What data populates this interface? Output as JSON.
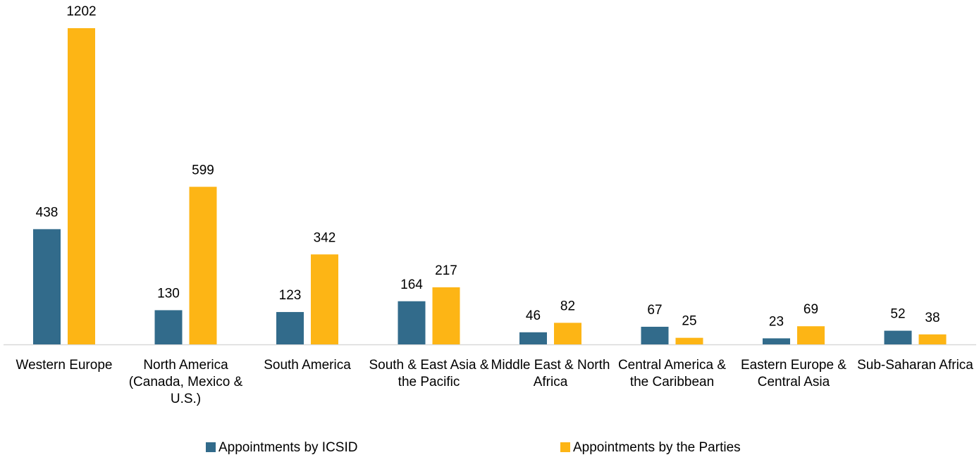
{
  "chart_data": {
    "type": "bar",
    "categories": [
      "Western Europe",
      "North America (Canada, Mexico & U.S.)",
      "South America",
      "South & East Asia & the Pacific",
      "Middle East & North Africa",
      "Central America & the Caribbean",
      "Eastern Europe & Central Asia",
      "Sub-Saharan Africa"
    ],
    "series": [
      {
        "name": "Appointments by ICSID",
        "color": "#326b8b",
        "values": [
          438,
          130,
          123,
          164,
          46,
          67,
          23,
          52
        ]
      },
      {
        "name": "Appointments by the Parties",
        "color": "#fdb515",
        "values": [
          1202,
          599,
          342,
          217,
          82,
          25,
          69,
          38
        ]
      }
    ],
    "legend": "bottom"
  }
}
